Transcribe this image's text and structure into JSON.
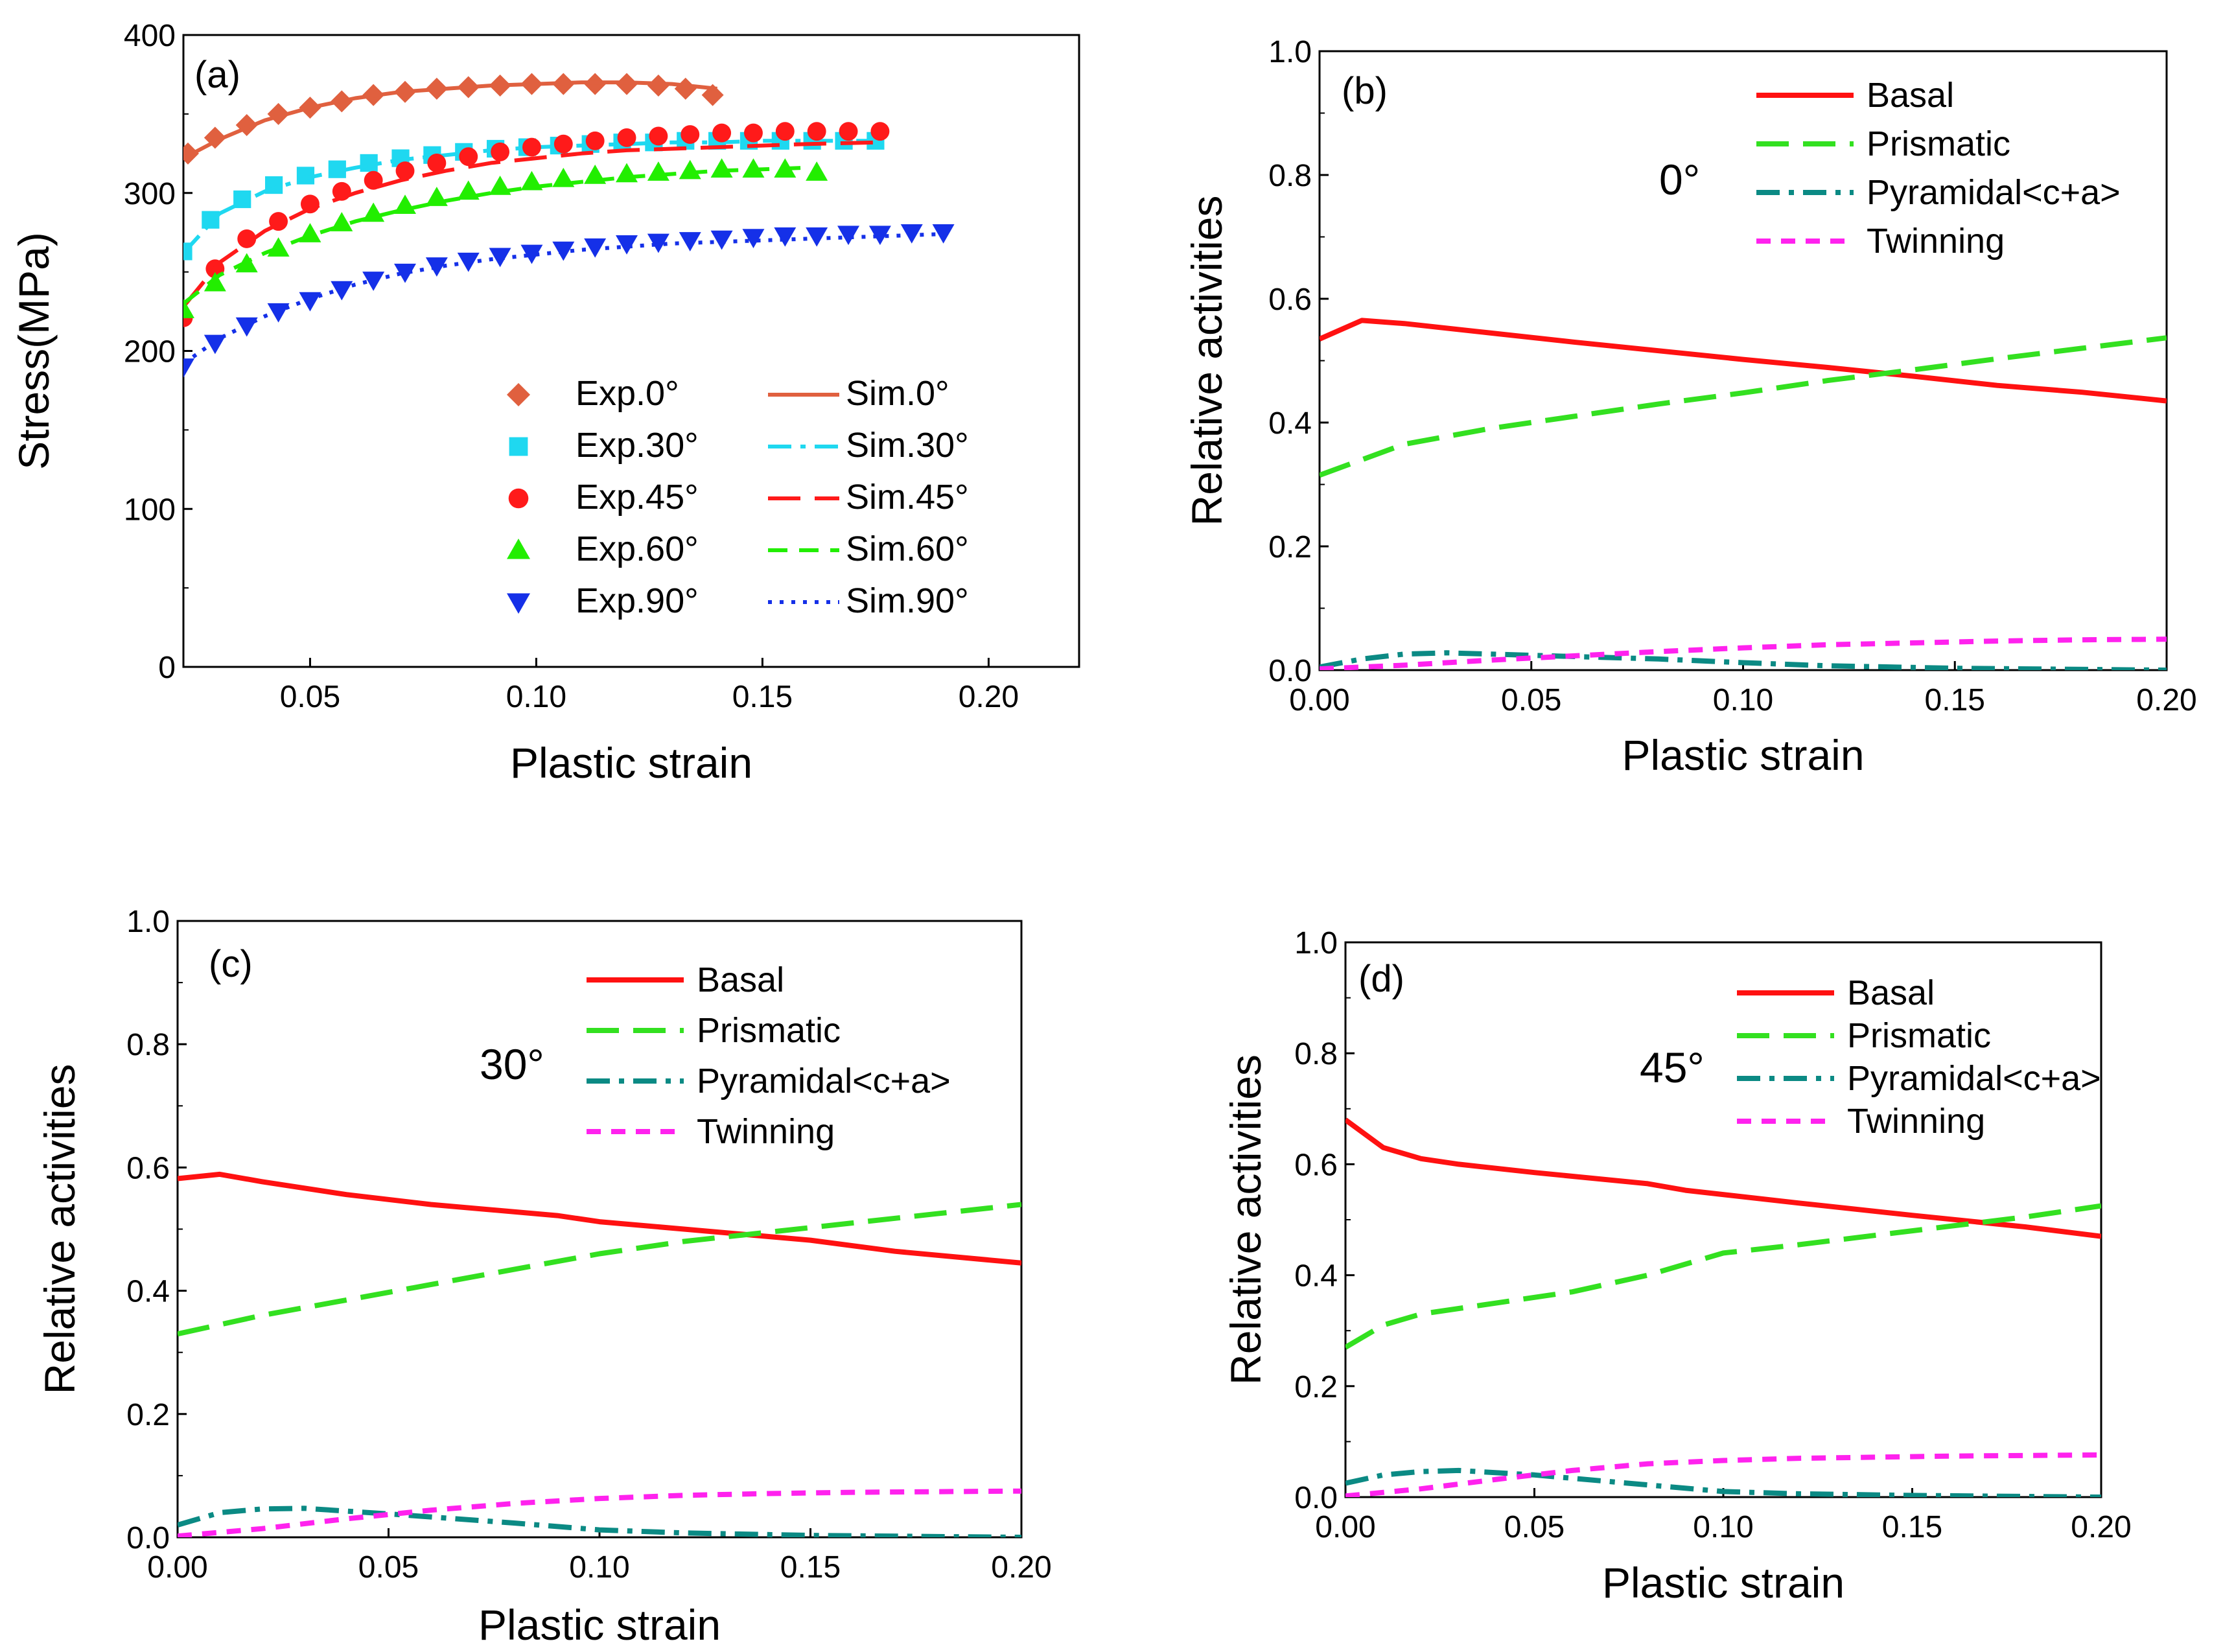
{
  "chart_data": [
    {
      "id": "a",
      "type": "line",
      "panel_label": "(a)",
      "xlabel": "Plastic  strain",
      "ylabel": "Stress(MPa)",
      "xlim": [
        0.022,
        0.22
      ],
      "ylim": [
        0,
        400
      ],
      "xticks": [
        0.05,
        0.1,
        0.15,
        0.2
      ],
      "xtick_labels": [
        "0.05",
        "0.10",
        "0.15",
        "0.20"
      ],
      "yticks": [
        0,
        100,
        200,
        300,
        400
      ],
      "ytick_labels": [
        "0",
        "100",
        "200",
        "300",
        "400"
      ],
      "legend_position": "center-right",
      "series": [
        {
          "name": "Exp.0°",
          "kind": "scatter",
          "marker": "diamond",
          "color": "#e0603f",
          "x": [
            0.023,
            0.029,
            0.036,
            0.043,
            0.05,
            0.057,
            0.064,
            0.071,
            0.078,
            0.085,
            0.092,
            0.099,
            0.106,
            0.113,
            0.12,
            0.127,
            0.133,
            0.139
          ],
          "y": [
            325,
            335,
            343,
            350,
            354,
            358,
            362,
            364,
            366,
            367,
            368,
            369,
            369,
            369,
            369,
            368,
            366,
            362
          ]
        },
        {
          "name": "Sim.0°",
          "kind": "line",
          "dash": "solid",
          "color": "#e0603f",
          "x": [
            0.022,
            0.03,
            0.04,
            0.05,
            0.06,
            0.07,
            0.08,
            0.09,
            0.1,
            0.11,
            0.12,
            0.13,
            0.14
          ],
          "y": [
            322,
            334,
            346,
            354,
            360,
            364,
            366,
            368,
            369,
            370,
            370,
            369,
            366
          ]
        },
        {
          "name": "Exp.30°",
          "kind": "scatter",
          "marker": "square",
          "color": "#1fd8f0",
          "x": [
            0.022,
            0.028,
            0.035,
            0.042,
            0.049,
            0.056,
            0.063,
            0.07,
            0.077,
            0.084,
            0.091,
            0.098,
            0.105,
            0.112,
            0.119,
            0.126,
            0.133,
            0.14,
            0.147,
            0.154,
            0.161,
            0.168,
            0.175
          ],
          "y": [
            263,
            283,
            296,
            305,
            311,
            315,
            319,
            322,
            324,
            326,
            328,
            329,
            330,
            331,
            332,
            332,
            333,
            333,
            333,
            333,
            333,
            333,
            333
          ]
        },
        {
          "name": "Sim.30°",
          "kind": "line",
          "dash": "dashdot",
          "color": "#1fd8f0",
          "x": [
            0.022,
            0.03,
            0.04,
            0.05,
            0.06,
            0.07,
            0.08,
            0.09,
            0.1,
            0.11,
            0.12,
            0.13,
            0.14,
            0.15,
            0.16,
            0.175
          ],
          "y": [
            262,
            287,
            301,
            310,
            316,
            321,
            324,
            327,
            329,
            330,
            331,
            332,
            332,
            333,
            333,
            333
          ]
        },
        {
          "name": "Exp.45°",
          "kind": "scatter",
          "marker": "circle",
          "color": "#ff1a1a",
          "x": [
            0.022,
            0.029,
            0.036,
            0.043,
            0.05,
            0.057,
            0.064,
            0.071,
            0.078,
            0.085,
            0.092,
            0.099,
            0.106,
            0.113,
            0.12,
            0.127,
            0.134,
            0.141,
            0.148,
            0.155,
            0.162,
            0.169,
            0.176
          ],
          "y": [
            221,
            252,
            271,
            282,
            293,
            301,
            308,
            314,
            319,
            323,
            326,
            329,
            331,
            333,
            335,
            336,
            337,
            338,
            338,
            339,
            339,
            339,
            339
          ]
        },
        {
          "name": "Sim.45°",
          "kind": "line",
          "dash": "longdash",
          "color": "#ff1a1a",
          "x": [
            0.022,
            0.03,
            0.04,
            0.05,
            0.06,
            0.07,
            0.08,
            0.09,
            0.1,
            0.11,
            0.12,
            0.13,
            0.14,
            0.15,
            0.16,
            0.175
          ],
          "y": [
            228,
            256,
            276,
            290,
            300,
            308,
            314,
            319,
            322,
            325,
            327,
            328,
            329,
            330,
            331,
            332
          ]
        },
        {
          "name": "Exp.60°",
          "kind": "scatter",
          "marker": "triangle-up",
          "color": "#22ee00",
          "x": [
            0.022,
            0.029,
            0.036,
            0.043,
            0.05,
            0.057,
            0.064,
            0.071,
            0.078,
            0.085,
            0.092,
            0.099,
            0.106,
            0.113,
            0.12,
            0.127,
            0.134,
            0.141,
            0.148,
            0.155,
            0.162
          ],
          "y": [
            226,
            243,
            255,
            265,
            274,
            281,
            287,
            292,
            297,
            301,
            304,
            307,
            309,
            311,
            312,
            313,
            314,
            315,
            315,
            315,
            313
          ]
        },
        {
          "name": "Sim.60°",
          "kind": "line",
          "dash": "dash",
          "color": "#22ee00",
          "x": [
            0.022,
            0.03,
            0.04,
            0.05,
            0.06,
            0.07,
            0.08,
            0.09,
            0.1,
            0.11,
            0.12,
            0.13,
            0.14,
            0.15,
            0.16
          ],
          "y": [
            230,
            248,
            262,
            273,
            282,
            289,
            295,
            300,
            304,
            307,
            310,
            312,
            314,
            315,
            316
          ]
        },
        {
          "name": "Exp.90°",
          "kind": "scatter",
          "marker": "triangle-down",
          "color": "#1530e8",
          "x": [
            0.022,
            0.029,
            0.036,
            0.043,
            0.05,
            0.057,
            0.064,
            0.071,
            0.078,
            0.085,
            0.092,
            0.099,
            0.106,
            0.113,
            0.12,
            0.127,
            0.134,
            0.141,
            0.148,
            0.155,
            0.162,
            0.169,
            0.176,
            0.183,
            0.19
          ],
          "y": [
            190,
            205,
            216,
            225,
            232,
            239,
            245,
            250,
            254,
            257,
            260,
            262,
            264,
            266,
            268,
            269,
            270,
            271,
            272,
            273,
            273,
            274,
            274,
            275,
            275
          ]
        },
        {
          "name": "Sim.90°",
          "kind": "line",
          "dash": "dot",
          "color": "#1530e8",
          "x": [
            0.022,
            0.03,
            0.04,
            0.05,
            0.06,
            0.07,
            0.08,
            0.09,
            0.1,
            0.11,
            0.12,
            0.13,
            0.14,
            0.15,
            0.16,
            0.17,
            0.18,
            0.19
          ],
          "y": [
            192,
            208,
            222,
            233,
            242,
            249,
            254,
            258,
            261,
            264,
            266,
            268,
            269,
            270,
            271,
            272,
            273,
            274
          ]
        }
      ]
    },
    {
      "id": "b",
      "type": "line",
      "panel_label": "(b)",
      "annotation": "0°",
      "xlabel": "Plastic strain",
      "ylabel": "Relative activities",
      "xlim": [
        0,
        0.2
      ],
      "ylim": [
        0,
        1.0
      ],
      "xticks": [
        0,
        0.05,
        0.1,
        0.15,
        0.2
      ],
      "xtick_labels": [
        "0.00",
        "0.05",
        "0.10",
        "0.15",
        "0.20"
      ],
      "yticks": [
        0,
        0.2,
        0.4,
        0.6,
        0.8,
        1.0
      ],
      "ytick_labels": [
        "0.0",
        "0.2",
        "0.4",
        "0.6",
        "0.8",
        "1.0"
      ],
      "legend_position": "top-right",
      "series": [
        {
          "name": "Basal",
          "dash": "solid",
          "color": "#ff1111",
          "x": [
            0,
            0.01,
            0.02,
            0.04,
            0.06,
            0.08,
            0.1,
            0.12,
            0.14,
            0.16,
            0.18,
            0.2
          ],
          "y": [
            0.535,
            0.565,
            0.56,
            0.545,
            0.53,
            0.516,
            0.502,
            0.489,
            0.475,
            0.46,
            0.449,
            0.435
          ]
        },
        {
          "name": "Prismatic",
          "dash": "longdash",
          "color": "#33e020",
          "x": [
            0,
            0.02,
            0.04,
            0.06,
            0.08,
            0.1,
            0.12,
            0.14,
            0.16,
            0.18,
            0.2
          ],
          "y": [
            0.315,
            0.365,
            0.39,
            0.41,
            0.43,
            0.448,
            0.468,
            0.485,
            0.503,
            0.52,
            0.537
          ]
        },
        {
          "name": "Pyramidal<c+a>",
          "dash": "dashdot",
          "color": "#0b8a84",
          "x": [
            0,
            0.01,
            0.02,
            0.03,
            0.05,
            0.08,
            0.1,
            0.12,
            0.15,
            0.2
          ],
          "y": [
            0.005,
            0.018,
            0.026,
            0.028,
            0.024,
            0.018,
            0.012,
            0.007,
            0.003,
            0.0
          ]
        },
        {
          "name": "Twinning",
          "dash": "shortdash",
          "color": "#ff22ee",
          "x": [
            0,
            0.02,
            0.04,
            0.06,
            0.08,
            0.1,
            0.12,
            0.14,
            0.16,
            0.18,
            0.2
          ],
          "y": [
            0.002,
            0.008,
            0.016,
            0.023,
            0.03,
            0.036,
            0.041,
            0.044,
            0.047,
            0.049,
            0.05
          ]
        }
      ]
    },
    {
      "id": "c",
      "type": "line",
      "panel_label": "(c)",
      "annotation": "30°",
      "xlabel": "Plastic strain",
      "ylabel": "Relative activities",
      "xlim": [
        0,
        0.2
      ],
      "ylim": [
        0,
        1.0
      ],
      "xticks": [
        0,
        0.05,
        0.1,
        0.15,
        0.2
      ],
      "xtick_labels": [
        "0.00",
        "0.05",
        "0.10",
        "0.15",
        "0.20"
      ],
      "yticks": [
        0,
        0.2,
        0.4,
        0.6,
        0.8,
        1.0
      ],
      "ytick_labels": [
        "0.0",
        "0.2",
        "0.4",
        "0.6",
        "0.8",
        "1.0"
      ],
      "legend_position": "top-right",
      "series": [
        {
          "name": "Basal",
          "dash": "solid",
          "color": "#ff1111",
          "x": [
            0,
            0.01,
            0.02,
            0.04,
            0.06,
            0.09,
            0.1,
            0.12,
            0.15,
            0.17,
            0.2
          ],
          "y": [
            0.582,
            0.589,
            0.577,
            0.556,
            0.54,
            0.522,
            0.512,
            0.5,
            0.482,
            0.464,
            0.445
          ]
        },
        {
          "name": "Prismatic",
          "dash": "longdash",
          "color": "#33e020",
          "x": [
            0,
            0.02,
            0.04,
            0.06,
            0.08,
            0.1,
            0.12,
            0.14,
            0.16,
            0.18,
            0.2
          ],
          "y": [
            0.33,
            0.36,
            0.385,
            0.41,
            0.435,
            0.46,
            0.48,
            0.495,
            0.51,
            0.525,
            0.54
          ]
        },
        {
          "name": "Pyramidal<c+a>",
          "dash": "dashdot",
          "color": "#0b8a84",
          "x": [
            0,
            0.01,
            0.02,
            0.03,
            0.05,
            0.08,
            0.1,
            0.12,
            0.15,
            0.2
          ],
          "y": [
            0.02,
            0.04,
            0.046,
            0.047,
            0.038,
            0.023,
            0.012,
            0.007,
            0.003,
            0.0
          ]
        },
        {
          "name": "Twinning",
          "dash": "shortdash",
          "color": "#ff22ee",
          "x": [
            0,
            0.02,
            0.04,
            0.06,
            0.08,
            0.1,
            0.12,
            0.14,
            0.16,
            0.18,
            0.2
          ],
          "y": [
            0.002,
            0.014,
            0.03,
            0.044,
            0.055,
            0.063,
            0.068,
            0.071,
            0.073,
            0.074,
            0.075
          ]
        }
      ]
    },
    {
      "id": "d",
      "type": "line",
      "panel_label": "(d)",
      "annotation": "45°",
      "xlabel": "Plastic strain",
      "ylabel": "Relative activities",
      "xlim": [
        0,
        0.2
      ],
      "ylim": [
        0,
        1.0
      ],
      "xticks": [
        0,
        0.05,
        0.1,
        0.15,
        0.2
      ],
      "xtick_labels": [
        "0.00",
        "0.05",
        "0.10",
        "0.15",
        "0.20"
      ],
      "yticks": [
        0,
        0.2,
        0.4,
        0.6,
        0.8,
        1.0
      ],
      "ytick_labels": [
        "0.0",
        "0.2",
        "0.4",
        "0.6",
        "0.8",
        "1.0"
      ],
      "legend_position": "top-right",
      "series": [
        {
          "name": "Basal",
          "dash": "solid",
          "color": "#ff1111",
          "x": [
            0,
            0.01,
            0.02,
            0.03,
            0.05,
            0.08,
            0.09,
            0.12,
            0.15,
            0.18,
            0.2
          ],
          "y": [
            0.68,
            0.63,
            0.61,
            0.6,
            0.585,
            0.565,
            0.553,
            0.53,
            0.508,
            0.487,
            0.47
          ]
        },
        {
          "name": "Prismatic",
          "dash": "longdash",
          "color": "#33e020",
          "x": [
            0,
            0.01,
            0.02,
            0.04,
            0.06,
            0.08,
            0.1,
            0.12,
            0.15,
            0.18,
            0.2
          ],
          "y": [
            0.27,
            0.31,
            0.33,
            0.35,
            0.37,
            0.4,
            0.44,
            0.455,
            0.48,
            0.505,
            0.525
          ]
        },
        {
          "name": "Pyramidal<c+a>",
          "dash": "dashdot",
          "color": "#0b8a84",
          "x": [
            0,
            0.01,
            0.02,
            0.03,
            0.05,
            0.08,
            0.1,
            0.12,
            0.15,
            0.2
          ],
          "y": [
            0.025,
            0.04,
            0.046,
            0.048,
            0.04,
            0.022,
            0.01,
            0.006,
            0.003,
            0.0
          ]
        },
        {
          "name": "Twinning",
          "dash": "shortdash",
          "color": "#ff22ee",
          "x": [
            0,
            0.02,
            0.04,
            0.06,
            0.08,
            0.1,
            0.12,
            0.14,
            0.16,
            0.18,
            0.2
          ],
          "y": [
            0.002,
            0.015,
            0.032,
            0.048,
            0.06,
            0.066,
            0.07,
            0.072,
            0.074,
            0.075,
            0.076
          ]
        }
      ]
    }
  ]
}
